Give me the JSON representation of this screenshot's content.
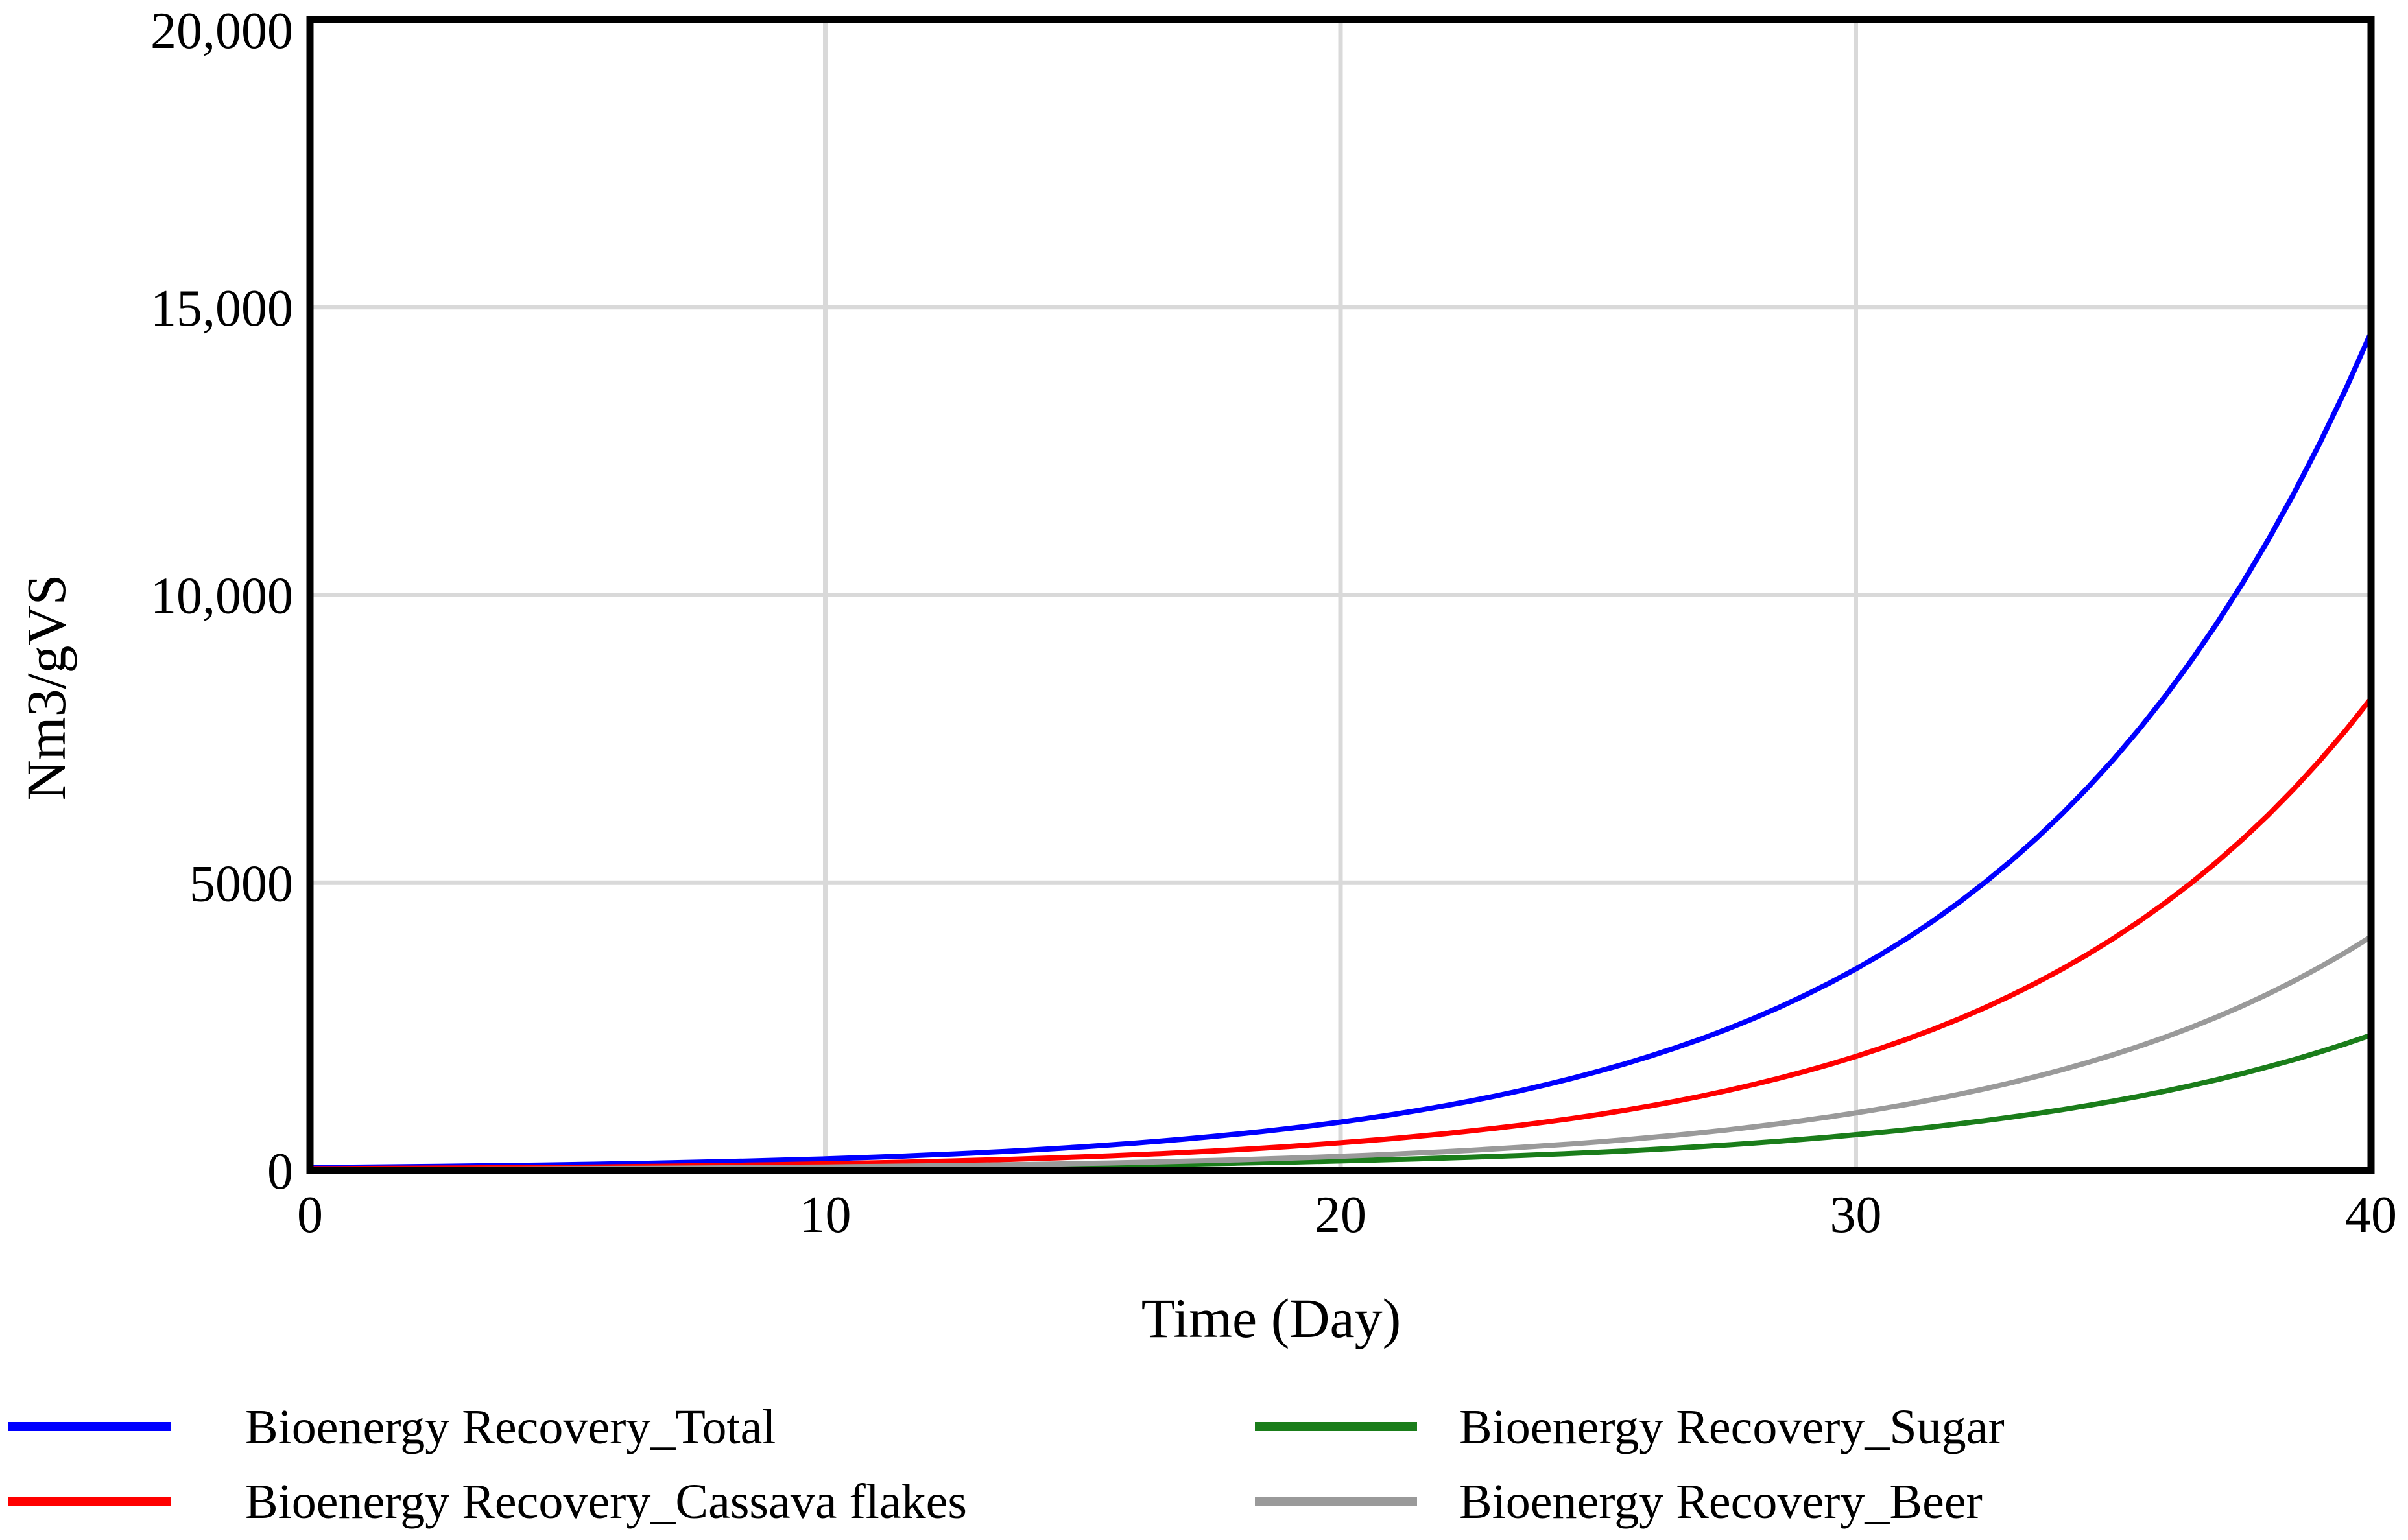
{
  "page": {
    "background": "#ffffff"
  },
  "chart_data": {
    "type": "line",
    "title": "",
    "xlabel": "Time (Day)",
    "ylabel": "Nm3/gVS",
    "xlim": [
      0,
      40
    ],
    "ylim": [
      0,
      20000
    ],
    "grid": true,
    "legend_position": "bottom, two columns",
    "x_ticks": [
      {
        "value": 0,
        "label": "0"
      },
      {
        "value": 10,
        "label": "10"
      },
      {
        "value": 20,
        "label": "20"
      },
      {
        "value": 30,
        "label": "30"
      },
      {
        "value": 40,
        "label": "40"
      }
    ],
    "y_ticks": [
      {
        "value": 0,
        "label": "0"
      },
      {
        "value": 5000,
        "label": "5000"
      },
      {
        "value": 10000,
        "label": "10,000"
      },
      {
        "value": 15000,
        "label": "15,000"
      },
      {
        "value": 20000,
        "label": "20,000"
      }
    ],
    "sample_days": [
      0,
      5,
      10,
      15,
      20,
      25,
      30,
      35,
      40
    ],
    "series": [
      {
        "name": "Bioenergy Recovery_Total",
        "color": "#0000ff",
        "values": [
          50,
          100,
          200,
          410,
          840,
          1720,
          3500,
          7140,
          14560
        ],
        "legend_column": 0,
        "legend_row": 0
      },
      {
        "name": "Bioenergy Recovery_Cassava flakes",
        "color": "#ff0000",
        "values": [
          30,
          55,
          115,
          235,
          480,
          970,
          1980,
          4030,
          8200
        ],
        "legend_column": 0,
        "legend_row": 1
      },
      {
        "name": "Bioenergy Recovery_Sugar",
        "color": "#1a7d1a",
        "values": [
          10,
          20,
          45,
          85,
          165,
          315,
          620,
          1205,
          2350
        ],
        "legend_column": 1,
        "legend_row": 0
      },
      {
        "name": "Bioenergy Recovery_Beer",
        "color": "#9a9a9a",
        "values": [
          15,
          30,
          60,
          120,
          245,
          495,
          1000,
          2010,
          4060
        ],
        "legend_column": 1,
        "legend_row": 1
      }
    ],
    "colors": {
      "grid": "#d9d9d9",
      "border": "#000000",
      "tick_text": "#000000"
    }
  }
}
